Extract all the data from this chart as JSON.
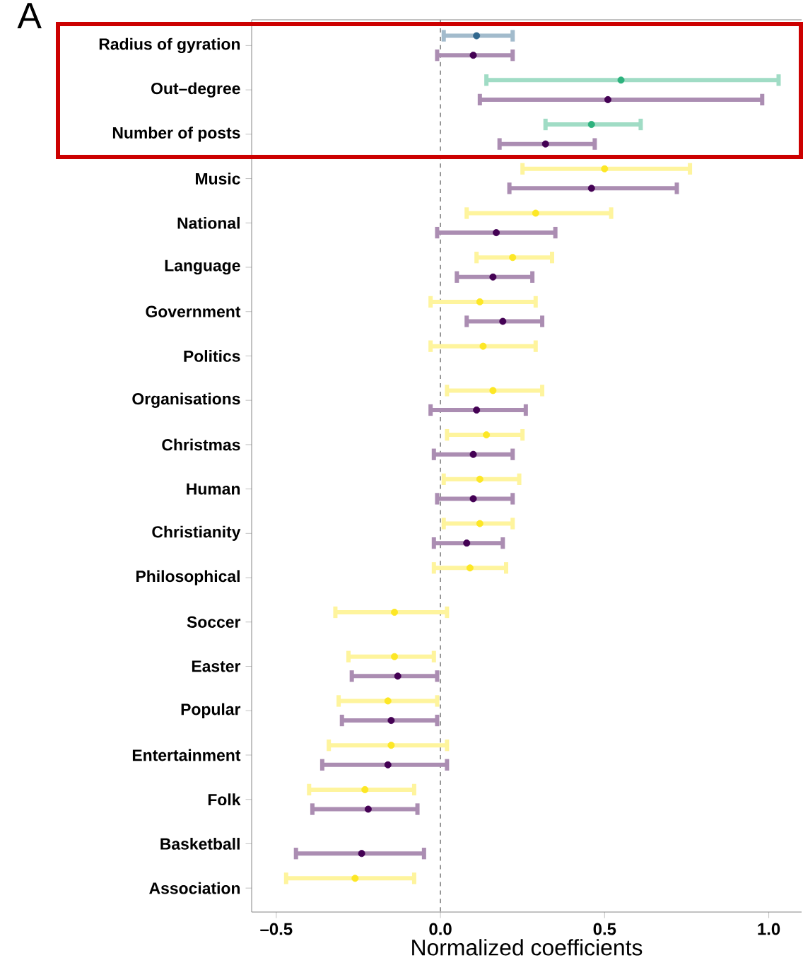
{
  "chart_data": {
    "type": "scatter",
    "orientation": "horizontal",
    "xlabel": "Normalized coefficients",
    "annotations": [
      "A"
    ],
    "marker": "circle",
    "categories": [
      "Radius of gyration",
      "Out–degree",
      "Number of posts",
      "Music",
      "National",
      "Language",
      "Government",
      "Politics",
      "Organisations",
      "Christmas",
      "Human",
      "Christianity",
      "Philosophical",
      "Soccer",
      "Easter",
      "Popular",
      "Entertainment",
      "Folk",
      "Basketball",
      "Association"
    ],
    "xlim": [
      -0.575,
      1.1
    ],
    "xticks": [
      {
        "value": -0.5,
        "label": "–0.5"
      },
      {
        "value": 0,
        "label": "0.0"
      },
      {
        "value": 0.5,
        "label": "0.5"
      },
      {
        "value": 1,
        "label": "1.0"
      }
    ],
    "ref_lines": [
      {
        "axis": "x",
        "value": 0,
        "color": "#808080",
        "line_style": "dashed"
      }
    ],
    "series": [
      {
        "colors": [
          "#31688e",
          "#2db27d",
          "#2db27d",
          "#fde725",
          "#fde725",
          "#fde725",
          "#fde725",
          "#fde725",
          "#fde725",
          "#fde725",
          "#fde725",
          "#fde725",
          "#fde725",
          "#fde725",
          "#fde725",
          "#fde725",
          "#fde725",
          "#fde725",
          "#fde725",
          "#fde725"
        ],
        "values": [
          0.11,
          0.55,
          0.46,
          0.5,
          0.29,
          0.22,
          0.12,
          0.13,
          0.16,
          0.14,
          0.12,
          0.12,
          0.09,
          -0.14,
          -0.14,
          -0.16,
          -0.15,
          -0.23,
          null,
          -0.26
        ],
        "errors": [
          [
            0.01,
            0.22
          ],
          [
            0.14,
            1.03
          ],
          [
            0.32,
            0.61
          ],
          [
            0.25,
            0.76
          ],
          [
            0.08,
            0.52
          ],
          [
            0.11,
            0.34
          ],
          [
            -0.03,
            0.29
          ],
          [
            -0.03,
            0.29
          ],
          [
            0.02,
            0.31
          ],
          [
            0.02,
            0.25
          ],
          [
            0.01,
            0.24
          ],
          [
            0.01,
            0.22
          ],
          [
            -0.02,
            0.2
          ],
          [
            -0.32,
            0.02
          ],
          [
            -0.28,
            -0.02
          ],
          [
            -0.31,
            -0.01
          ],
          [
            -0.34,
            0.02
          ],
          [
            -0.4,
            -0.08
          ],
          null,
          [
            -0.47,
            -0.08
          ]
        ]
      },
      {
        "color": "#440154",
        "values": [
          0.1,
          0.51,
          0.32,
          0.46,
          0.17,
          0.16,
          0.19,
          null,
          0.11,
          0.1,
          0.1,
          0.08,
          null,
          null,
          -0.13,
          -0.15,
          -0.16,
          -0.22,
          -0.24,
          null
        ],
        "errors": [
          [
            -0.01,
            0.22
          ],
          [
            0.12,
            0.98
          ],
          [
            0.18,
            0.47
          ],
          [
            0.21,
            0.72
          ],
          [
            -0.01,
            0.35
          ],
          [
            0.05,
            0.28
          ],
          [
            0.08,
            0.31
          ],
          null,
          [
            -0.03,
            0.26
          ],
          [
            -0.02,
            0.22
          ],
          [
            -0.01,
            0.22
          ],
          [
            -0.02,
            0.19
          ],
          null,
          null,
          [
            -0.27,
            -0.01
          ],
          [
            -0.3,
            -0.01
          ],
          [
            -0.36,
            0.02
          ],
          [
            -0.39,
            -0.07
          ],
          [
            -0.44,
            -0.05
          ],
          null
        ]
      }
    ]
  }
}
